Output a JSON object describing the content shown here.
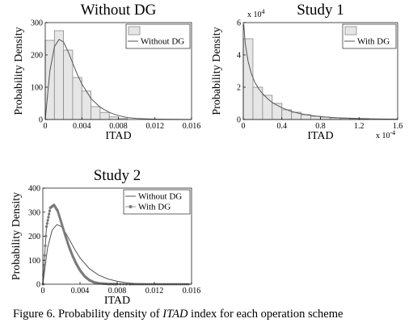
{
  "caption": {
    "prefix": "Figure 6. Probability density of ",
    "emphasis": "ITAD",
    "suffix": " index for each operation scheme"
  },
  "chart_data": [
    {
      "type": "bar",
      "title": "Without DG",
      "xlabel": "ITAD",
      "ylabel": "Probability Density",
      "xlim": [
        0,
        0.016
      ],
      "ylim": [
        0,
        300
      ],
      "xticks": [
        "0",
        "0.004",
        "0.008",
        "0.012",
        "0.016"
      ],
      "yticks": [
        "0",
        "100",
        "200",
        "300"
      ],
      "legend_position": "top-right",
      "bins": [
        {
          "x0": 0.0,
          "x1": 0.001,
          "value": 245
        },
        {
          "x0": 0.001,
          "x1": 0.002,
          "value": 275
        },
        {
          "x0": 0.002,
          "x1": 0.003,
          "value": 215
        },
        {
          "x0": 0.003,
          "x1": 0.004,
          "value": 130
        },
        {
          "x0": 0.004,
          "x1": 0.005,
          "value": 88
        },
        {
          "x0": 0.005,
          "x1": 0.006,
          "value": 40
        },
        {
          "x0": 0.006,
          "x1": 0.007,
          "value": 22
        },
        {
          "x0": 0.007,
          "x1": 0.008,
          "value": 8
        },
        {
          "x0": 0.008,
          "x1": 0.009,
          "value": 3
        }
      ],
      "series": [
        {
          "name": "Without DG",
          "kind": "histogram"
        },
        {
          "name": "Without DG",
          "kind": "line",
          "x": [
            0,
            0.0005,
            0.001,
            0.0015,
            0.002,
            0.0025,
            0.003,
            0.0035,
            0.004,
            0.005,
            0.006,
            0.007,
            0.008,
            0.009,
            0.01,
            0.012,
            0.014,
            0.016
          ],
          "y": [
            0,
            150,
            225,
            248,
            240,
            210,
            175,
            140,
            110,
            65,
            38,
            22,
            12,
            6,
            3,
            1,
            0.3,
            0.1
          ]
        }
      ]
    },
    {
      "type": "bar",
      "title": "Study 1",
      "xlabel": "ITAD",
      "ylabel": "Probability Density",
      "x_multiplier": "x 10",
      "x_exponent": "-4",
      "y_multiplier": "x 10",
      "y_exponent": "4",
      "xlim": [
        0,
        1.6
      ],
      "ylim": [
        0,
        6
      ],
      "xticks": [
        "0",
        "0.4",
        "0.8",
        "1.2",
        "1.6"
      ],
      "yticks": [
        "0",
        "2",
        "4",
        "6"
      ],
      "legend_position": "top-right",
      "bins": [
        {
          "x0": 0.0,
          "x1": 0.1,
          "value": 5.0
        },
        {
          "x0": 0.1,
          "x1": 0.2,
          "value": 2.0
        },
        {
          "x0": 0.2,
          "x1": 0.3,
          "value": 1.5
        },
        {
          "x0": 0.3,
          "x1": 0.4,
          "value": 1.0
        },
        {
          "x0": 0.4,
          "x1": 0.5,
          "value": 0.6
        },
        {
          "x0": 0.5,
          "x1": 0.6,
          "value": 0.45
        },
        {
          "x0": 0.6,
          "x1": 0.7,
          "value": 0.3
        },
        {
          "x0": 0.7,
          "x1": 0.8,
          "value": 0.2
        },
        {
          "x0": 0.8,
          "x1": 0.9,
          "value": 0.15
        },
        {
          "x0": 0.9,
          "x1": 1.0,
          "value": 0.1
        },
        {
          "x0": 1.0,
          "x1": 1.1,
          "value": 0.07
        },
        {
          "x0": 1.1,
          "x1": 1.2,
          "value": 0.05
        },
        {
          "x0": 1.2,
          "x1": 1.3,
          "value": 0.03
        }
      ],
      "series": [
        {
          "name": "With DG",
          "kind": "histogram"
        },
        {
          "name": "With DG",
          "kind": "line",
          "x": [
            0.005,
            0.02,
            0.05,
            0.08,
            0.12,
            0.16,
            0.2,
            0.25,
            0.3,
            0.4,
            0.5,
            0.6,
            0.7,
            0.8,
            0.9,
            1.0,
            1.2,
            1.4,
            1.6
          ],
          "y": [
            5.9,
            4.7,
            3.6,
            2.9,
            2.3,
            1.9,
            1.6,
            1.3,
            1.05,
            0.72,
            0.5,
            0.35,
            0.25,
            0.18,
            0.13,
            0.1,
            0.06,
            0.03,
            0.02
          ]
        }
      ]
    },
    {
      "type": "line",
      "title": "Study 2",
      "xlabel": "ITAD",
      "ylabel": "Probability Density",
      "xlim": [
        0,
        0.016
      ],
      "ylim": [
        0,
        400
      ],
      "xticks": [
        "0",
        "0.004",
        "0.008",
        "0.012",
        "0.016"
      ],
      "yticks": [
        "0",
        "100",
        "200",
        "300",
        "400"
      ],
      "legend_position": "top-right",
      "series": [
        {
          "name": "Without DG",
          "style": "line",
          "x": [
            0,
            0.0005,
            0.001,
            0.0015,
            0.002,
            0.0025,
            0.003,
            0.0035,
            0.004,
            0.005,
            0.006,
            0.007,
            0.008,
            0.009,
            0.01,
            0.012,
            0.014,
            0.016
          ],
          "y": [
            0,
            150,
            225,
            248,
            240,
            210,
            175,
            140,
            110,
            65,
            38,
            22,
            12,
            6,
            3,
            1,
            0.3,
            0.1
          ]
        },
        {
          "name": "With DG",
          "style": "dotted-line",
          "x": [
            0,
            0.0004,
            0.0008,
            0.0012,
            0.0016,
            0.002,
            0.0024,
            0.0028,
            0.0032,
            0.0036,
            0.004,
            0.0045,
            0.005,
            0.0055,
            0.006,
            0.007,
            0.008,
            0.01,
            0.012,
            0.016
          ],
          "y": [
            0,
            240,
            318,
            330,
            305,
            255,
            205,
            158,
            118,
            85,
            58,
            33,
            17,
            8,
            4,
            1,
            0.4,
            0,
            0,
            0
          ]
        }
      ]
    }
  ]
}
